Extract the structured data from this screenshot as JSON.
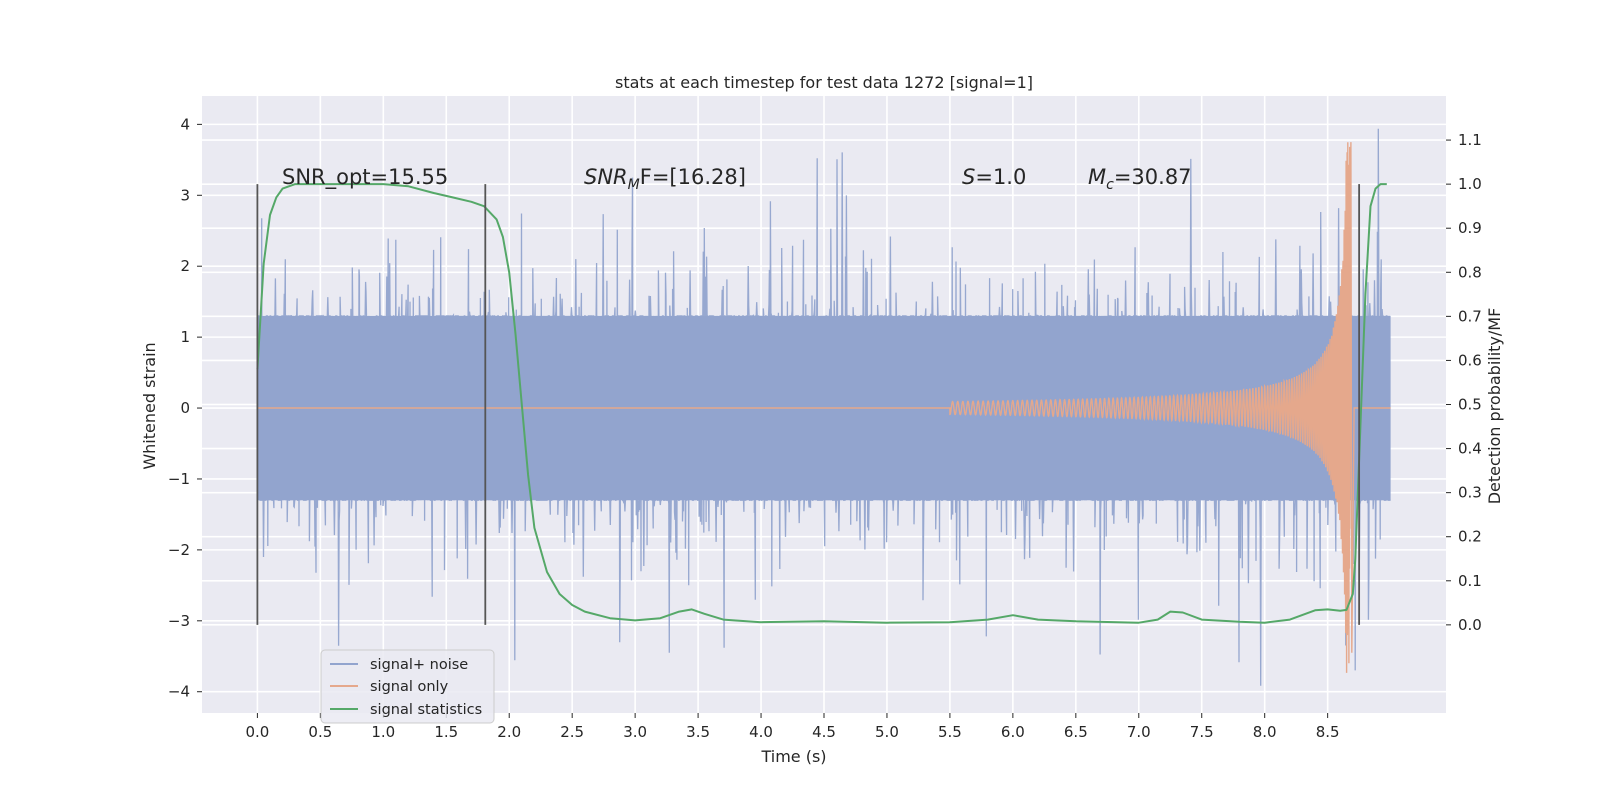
{
  "chart_data": {
    "type": "line",
    "title": "stats at each timestep for test data 1272 [signal=1]",
    "xlabel": "Time (s)",
    "ylabel": "Whitened strain",
    "ylabel_right": "Detection probability/MF",
    "xlim": [
      -0.44,
      9.44
    ],
    "ylim": [
      -4.3,
      4.4
    ],
    "ylim_right": [
      -0.2,
      1.2
    ],
    "xticks": [
      "0.0",
      "0.5",
      "1.0",
      "1.5",
      "2.0",
      "2.5",
      "3.0",
      "3.5",
      "4.0",
      "4.5",
      "5.0",
      "5.5",
      "6.0",
      "6.5",
      "7.0",
      "7.5",
      "8.0",
      "8.5"
    ],
    "yticks_left": [
      "4",
      "3",
      "2",
      "1",
      "0",
      "−1",
      "−2",
      "−3",
      "−4"
    ],
    "yticks_right": [
      "1.1",
      "1.0",
      "0.9",
      "0.8",
      "0.7",
      "0.6",
      "0.5",
      "0.4",
      "0.3",
      "0.2",
      "0.1",
      "0.0"
    ],
    "annotations": {
      "snr_opt": "SNR_opt=15.55",
      "snr_mf_prefix": "SNR",
      "snr_mf_sub": "M",
      "snr_mf_suffix": "F=[16.28]",
      "s_var": "S",
      "s_value": "=1.0",
      "mc_var": "M",
      "mc_sub": "c",
      "mc_value": "=30.87"
    },
    "vertical_lines_x": [
      0.0,
      1.81,
      8.75
    ],
    "series": [
      {
        "name": "signal+ noise",
        "color": "#92a4ce",
        "t_range": [
          0.0,
          9.0
        ],
        "envelope_core": 1.3,
        "spike_max": [
          4.0,
          -3.9
        ]
      },
      {
        "name": "signal only",
        "color": "#e5a88c",
        "chirp": {
          "t_start": 5.5,
          "t_merger": 8.68,
          "peak_amplitude": 3.75,
          "min_amplitude": -3.45
        }
      },
      {
        "name": "signal statistics",
        "color": "#55a868",
        "axis": "right",
        "points": [
          [
            0.0,
            0.58
          ],
          [
            0.05,
            0.82
          ],
          [
            0.1,
            0.93
          ],
          [
            0.15,
            0.97
          ],
          [
            0.2,
            0.99
          ],
          [
            0.3,
            1.0
          ],
          [
            0.5,
            1.0
          ],
          [
            0.8,
            1.0
          ],
          [
            1.0,
            1.0
          ],
          [
            1.2,
            0.995
          ],
          [
            1.4,
            0.98
          ],
          [
            1.55,
            0.97
          ],
          [
            1.7,
            0.96
          ],
          [
            1.8,
            0.95
          ],
          [
            1.9,
            0.92
          ],
          [
            1.95,
            0.88
          ],
          [
            2.0,
            0.8
          ],
          [
            2.05,
            0.66
          ],
          [
            2.1,
            0.5
          ],
          [
            2.15,
            0.34
          ],
          [
            2.2,
            0.22
          ],
          [
            2.3,
            0.12
          ],
          [
            2.4,
            0.07
          ],
          [
            2.5,
            0.045
          ],
          [
            2.6,
            0.03
          ],
          [
            2.8,
            0.015
          ],
          [
            3.0,
            0.01
          ],
          [
            3.2,
            0.015
          ],
          [
            3.35,
            0.03
          ],
          [
            3.45,
            0.035
          ],
          [
            3.55,
            0.025
          ],
          [
            3.7,
            0.012
          ],
          [
            4.0,
            0.006
          ],
          [
            4.5,
            0.008
          ],
          [
            5.0,
            0.005
          ],
          [
            5.5,
            0.006
          ],
          [
            5.8,
            0.012
          ],
          [
            6.0,
            0.022
          ],
          [
            6.2,
            0.012
          ],
          [
            6.5,
            0.008
          ],
          [
            7.0,
            0.005
          ],
          [
            7.15,
            0.012
          ],
          [
            7.25,
            0.03
          ],
          [
            7.35,
            0.028
          ],
          [
            7.5,
            0.012
          ],
          [
            7.8,
            0.007
          ],
          [
            8.0,
            0.005
          ],
          [
            8.2,
            0.012
          ],
          [
            8.4,
            0.033
          ],
          [
            8.5,
            0.035
          ],
          [
            8.6,
            0.032
          ],
          [
            8.65,
            0.034
          ],
          [
            8.7,
            0.07
          ],
          [
            8.72,
            0.15
          ],
          [
            8.76,
            0.45
          ],
          [
            8.8,
            0.75
          ],
          [
            8.84,
            0.95
          ],
          [
            8.88,
            0.99
          ],
          [
            8.92,
            1.0
          ],
          [
            8.97,
            1.0
          ]
        ]
      }
    ],
    "legend": [
      "signal+ noise",
      "signal only",
      "signal statistics"
    ],
    "grid": true,
    "legend_position": "lower-left"
  }
}
